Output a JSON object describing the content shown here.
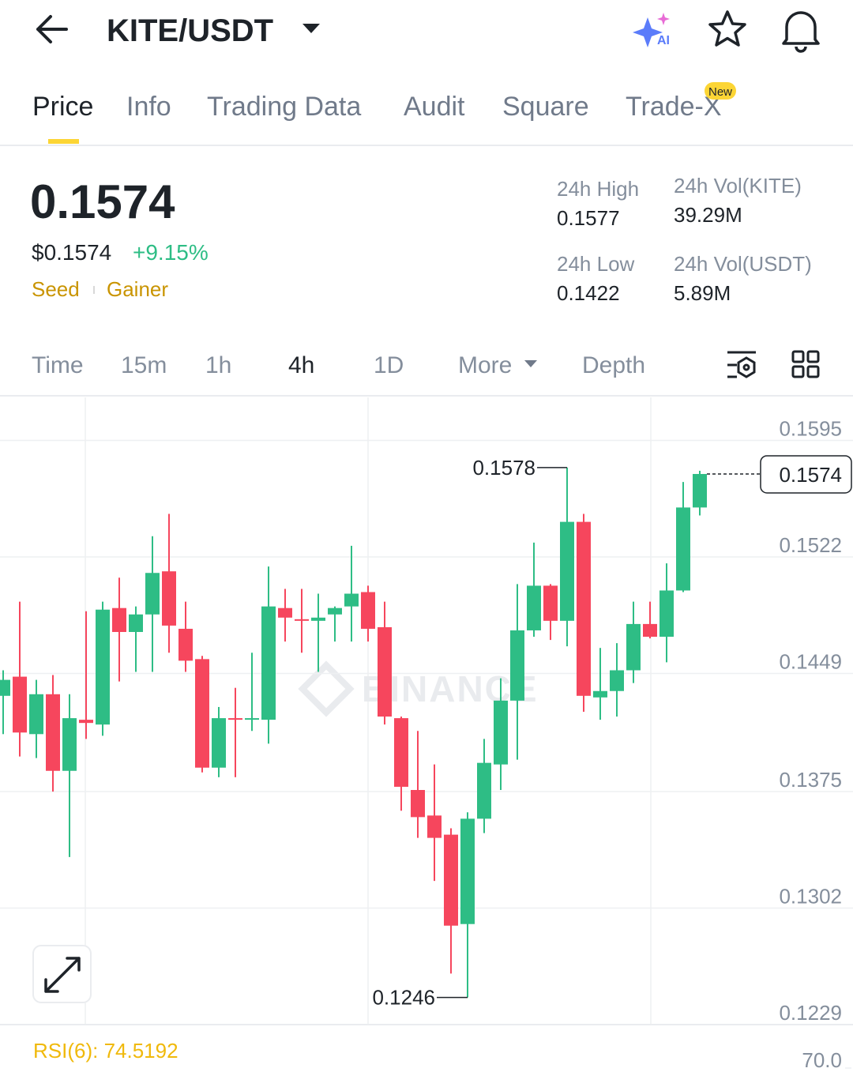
{
  "header": {
    "pair": "KITE/USDT",
    "ai_icon_label": "AI"
  },
  "tabs": {
    "items": [
      "Price",
      "Info",
      "Trading Data",
      "Audit",
      "Square",
      "Trade-X"
    ],
    "badge": "New"
  },
  "summary": {
    "last_price": "0.1574",
    "usd_price": "$0.1574",
    "change": "+9.15%",
    "tags": [
      "Seed",
      "Gainer"
    ]
  },
  "stats": [
    {
      "label": "24h High",
      "value": "0.1577"
    },
    {
      "label": "24h Vol(KITE)",
      "value": "39.29M"
    },
    {
      "label": "24h Low",
      "value": "0.1422"
    },
    {
      "label": "24h Vol(USDT)",
      "value": "5.89M"
    }
  ],
  "intervals": {
    "items": [
      "Time",
      "15m",
      "1h",
      "4h",
      "1D",
      "More",
      "Depth"
    ]
  },
  "chart_data": [
    {
      "type": "candlestick",
      "watermark": "BINANCE",
      "up_color": "#2ebd85",
      "down_color": "#f6465d",
      "open": [
        0.1435,
        0.1447,
        0.1411,
        0.1436,
        0.1388,
        0.142,
        0.1417,
        0.149,
        0.1475,
        0.1486,
        0.1513,
        0.1477,
        0.1458,
        0.139,
        0.1421,
        0.142,
        0.142,
        0.149,
        0.1483,
        0.1482,
        0.1486,
        0.1491,
        0.15,
        0.1478,
        0.1421,
        0.1376,
        0.136,
        0.1348,
        0.1292,
        0.1358,
        0.1392,
        0.1432,
        0.1476,
        0.1504,
        0.1482,
        0.1544,
        0.1434,
        0.1438,
        0.1451,
        0.148,
        0.1472,
        0.1501,
        0.1553
      ],
      "high": [
        0.1451,
        0.1494,
        0.1445,
        0.1448,
        0.1436,
        0.1488,
        0.1494,
        0.1509,
        0.1491,
        0.1535,
        0.1549,
        0.1494,
        0.146,
        0.1428,
        0.144,
        0.1462,
        0.1516,
        0.1502,
        0.1502,
        0.1499,
        0.1491,
        0.1529,
        0.1504,
        0.1494,
        0.1422,
        0.1413,
        0.1392,
        0.1352,
        0.1362,
        0.1408,
        0.1446,
        0.1505,
        0.1531,
        0.1505,
        0.1578,
        0.1549,
        0.1465,
        0.1468,
        0.1494,
        0.1494,
        0.1518,
        0.1569,
        0.1576
      ],
      "low": [
        0.1411,
        0.1397,
        0.1396,
        0.1375,
        0.1334,
        0.1408,
        0.141,
        0.1444,
        0.145,
        0.145,
        0.1462,
        0.145,
        0.1387,
        0.1384,
        0.1384,
        0.1413,
        0.1405,
        0.1469,
        0.1462,
        0.145,
        0.1469,
        0.1469,
        0.1469,
        0.1417,
        0.1363,
        0.1346,
        0.1319,
        0.1261,
        0.1246,
        0.1349,
        0.1376,
        0.1395,
        0.1472,
        0.147,
        0.1466,
        0.1425,
        0.142,
        0.1422,
        0.1443,
        0.1471,
        0.1456,
        0.15,
        0.1548
      ],
      "close": [
        0.1445,
        0.1412,
        0.1436,
        0.1388,
        0.1421,
        0.1418,
        0.1489,
        0.1475,
        0.1486,
        0.1512,
        0.1479,
        0.1457,
        0.139,
        0.1421,
        0.142,
        0.1421,
        0.1491,
        0.1484,
        0.1482,
        0.1484,
        0.149,
        0.1499,
        0.1477,
        0.1422,
        0.1378,
        0.1359,
        0.1346,
        0.1291,
        0.1358,
        0.1393,
        0.1432,
        0.1476,
        0.1504,
        0.1482,
        0.1544,
        0.1435,
        0.1438,
        0.1451,
        0.148,
        0.1472,
        0.1501,
        0.1553,
        0.1574
      ],
      "ylim": [
        0.1229,
        0.1622
      ],
      "yticks": [
        0.1595,
        0.1522,
        0.1449,
        0.1375,
        0.1302,
        0.1229
      ],
      "grid": true,
      "high_marker": 0.1578,
      "low_marker": 0.1246,
      "last_price": 0.1574
    },
    {
      "type": "line",
      "title": "RSI(6): 74.5192",
      "yticks": [
        {
          "value": 70,
          "label": "70.0"
        }
      ]
    }
  ]
}
